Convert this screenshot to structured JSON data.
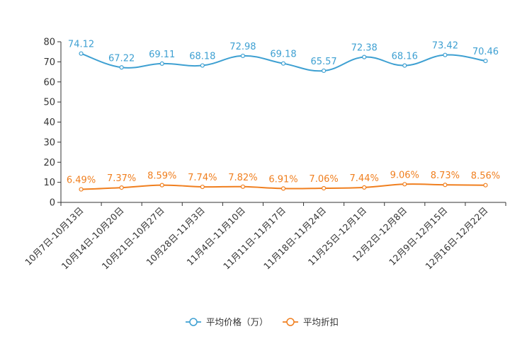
{
  "chart_data": {
    "type": "line",
    "categories": [
      "10月7日-10月13日",
      "10月14日-10月20日",
      "10月21日-10月27日",
      "10月28日-11月3日",
      "11月4日-11月10日",
      "11月11日-11月17日",
      "11月18日-11月24日",
      "11月25日-12月1日",
      "12月2日-12月8日",
      "12月9日-12月15日",
      "12月16日-12月22日"
    ],
    "ylim": [
      0,
      80
    ],
    "yticks": [
      "0",
      "10",
      "20",
      "30",
      "40",
      "50",
      "60",
      "70",
      "80"
    ],
    "series": [
      {
        "name": "平均价格（万）",
        "color": "#3ea0d2",
        "values": [
          74.12,
          67.22,
          69.11,
          68.18,
          72.98,
          69.18,
          65.57,
          72.38,
          68.16,
          73.42,
          70.46
        ],
        "labels": [
          "74.12",
          "67.22",
          "69.11",
          "68.18",
          "72.98",
          "69.18",
          "65.57",
          "72.38",
          "68.16",
          "73.42",
          "70.46"
        ]
      },
      {
        "name": "平均折扣",
        "color": "#f07f1f",
        "values": [
          6.49,
          7.37,
          8.59,
          7.74,
          7.82,
          6.91,
          7.06,
          7.44,
          9.06,
          8.73,
          8.56
        ],
        "labels": [
          "6.49%",
          "7.37%",
          "8.59%",
          "7.74%",
          "7.82%",
          "6.91%",
          "7.06%",
          "7.44%",
          "9.06%",
          "8.73%",
          "8.56%"
        ]
      }
    ]
  }
}
